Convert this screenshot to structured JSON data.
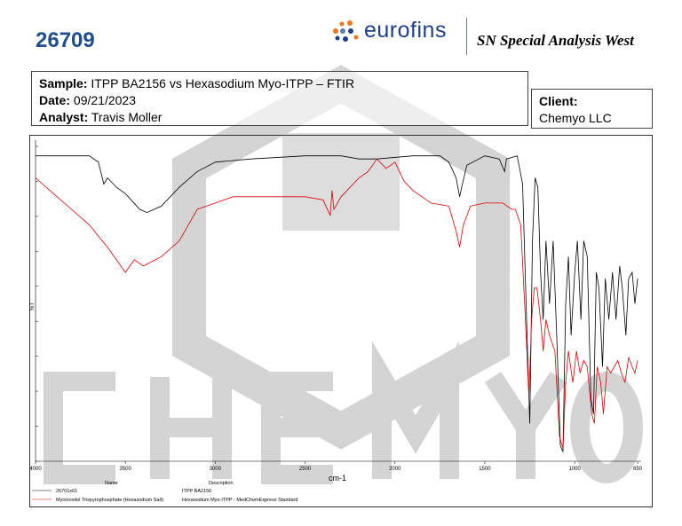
{
  "header": {
    "report_id": "26709",
    "brand": "eurofins",
    "lab_name": "SN Special Analysis West"
  },
  "sample_info": {
    "sample_label": "Sample:",
    "sample_value": "ITPP BA2156 vs Hexasodium Myo-ITPP – FTIR",
    "date_label": "Date:",
    "date_value": "09/21/2023",
    "analyst_label": "Analyst:",
    "analyst_value": "Travis Moller"
  },
  "client": {
    "label": "Client:",
    "value": "Chemyo LLC"
  },
  "watermark": "CHEMYO",
  "colors": {
    "brand_blue": "#1f4e8c",
    "series_black": "#000000",
    "series_red": "#e00000",
    "watermark": "#d0d0d0"
  },
  "chart_data": {
    "type": "line",
    "xlabel": "cm-1",
    "ylabel": "%T",
    "xlim": [
      4000,
      650
    ],
    "x_reversed": true,
    "ylim": [
      0,
      100
    ],
    "xticks": [
      4000,
      3500,
      3000,
      2500,
      2000,
      1500,
      1000,
      650
    ],
    "grid": false,
    "legend": {
      "placement": "bottom",
      "headers": [
        "Name",
        "Description"
      ]
    },
    "series": [
      {
        "name": "26701x01",
        "description": "ITPP BA2156",
        "color": "#000000",
        "points": [
          [
            4000,
            97
          ],
          [
            3700,
            97
          ],
          [
            3650,
            95
          ],
          [
            3620,
            88
          ],
          [
            3600,
            90
          ],
          [
            3550,
            87
          ],
          [
            3500,
            85
          ],
          [
            3420,
            80
          ],
          [
            3380,
            79
          ],
          [
            3300,
            81
          ],
          [
            3200,
            87
          ],
          [
            3100,
            92
          ],
          [
            3000,
            95
          ],
          [
            2800,
            96
          ],
          [
            2500,
            97
          ],
          [
            2300,
            97
          ],
          [
            2200,
            96
          ],
          [
            2100,
            96
          ],
          [
            1900,
            97
          ],
          [
            1750,
            97
          ],
          [
            1700,
            95
          ],
          [
            1660,
            90
          ],
          [
            1640,
            84
          ],
          [
            1625,
            88
          ],
          [
            1600,
            94
          ],
          [
            1500,
            97
          ],
          [
            1420,
            96
          ],
          [
            1390,
            92
          ],
          [
            1380,
            96
          ],
          [
            1320,
            97
          ],
          [
            1290,
            88
          ],
          [
            1265,
            40
          ],
          [
            1250,
            12
          ],
          [
            1235,
            70
          ],
          [
            1220,
            90
          ],
          [
            1205,
            87
          ],
          [
            1190,
            60
          ],
          [
            1175,
            45
          ],
          [
            1160,
            70
          ],
          [
            1140,
            50
          ],
          [
            1120,
            70
          ],
          [
            1100,
            40
          ],
          [
            1080,
            5
          ],
          [
            1065,
            3
          ],
          [
            1050,
            50
          ],
          [
            1035,
            65
          ],
          [
            1020,
            40
          ],
          [
            1000,
            60
          ],
          [
            985,
            70
          ],
          [
            965,
            45
          ],
          [
            950,
            70
          ],
          [
            930,
            65
          ],
          [
            910,
            20
          ],
          [
            895,
            15
          ],
          [
            880,
            60
          ],
          [
            865,
            55
          ],
          [
            845,
            30
          ],
          [
            830,
            58
          ],
          [
            810,
            45
          ],
          [
            790,
            60
          ],
          [
            770,
            45
          ],
          [
            750,
            62
          ],
          [
            735,
            55
          ],
          [
            715,
            40
          ],
          [
            700,
            58
          ],
          [
            680,
            60
          ],
          [
            665,
            50
          ],
          [
            650,
            58
          ]
        ]
      },
      {
        "name": "Myoinositol Trispyrophosphate (Hexasodium Salt)",
        "description": "Hexasodium Myo-ITPP - MedChemExpress Standard",
        "color": "#e00000",
        "points": [
          [
            4000,
            90
          ],
          [
            3900,
            85
          ],
          [
            3800,
            80
          ],
          [
            3700,
            75
          ],
          [
            3600,
            68
          ],
          [
            3500,
            60
          ],
          [
            3450,
            64
          ],
          [
            3400,
            62
          ],
          [
            3300,
            65
          ],
          [
            3200,
            70
          ],
          [
            3100,
            80
          ],
          [
            3000,
            82
          ],
          [
            2900,
            84
          ],
          [
            2700,
            84
          ],
          [
            2500,
            84
          ],
          [
            2400,
            83
          ],
          [
            2360,
            78
          ],
          [
            2350,
            86
          ],
          [
            2340,
            80
          ],
          [
            2300,
            84
          ],
          [
            2200,
            90
          ],
          [
            2150,
            92
          ],
          [
            2100,
            96
          ],
          [
            2050,
            93
          ],
          [
            2000,
            95
          ],
          [
            1950,
            89
          ],
          [
            1900,
            86
          ],
          [
            1800,
            82
          ],
          [
            1700,
            81
          ],
          [
            1660,
            73
          ],
          [
            1640,
            68
          ],
          [
            1620,
            75
          ],
          [
            1580,
            81
          ],
          [
            1500,
            82
          ],
          [
            1400,
            82
          ],
          [
            1350,
            80
          ],
          [
            1330,
            80
          ],
          [
            1300,
            75
          ],
          [
            1270,
            40
          ],
          [
            1255,
            20
          ],
          [
            1240,
            45
          ],
          [
            1225,
            55
          ],
          [
            1210,
            55
          ],
          [
            1190,
            45
          ],
          [
            1175,
            35
          ],
          [
            1160,
            45
          ],
          [
            1140,
            40
          ],
          [
            1110,
            35
          ],
          [
            1085,
            8
          ],
          [
            1065,
            4
          ],
          [
            1050,
            25
          ],
          [
            1035,
            35
          ],
          [
            1010,
            25
          ],
          [
            990,
            35
          ],
          [
            970,
            28
          ],
          [
            950,
            32
          ],
          [
            930,
            30
          ],
          [
            905,
            15
          ],
          [
            890,
            12
          ],
          [
            875,
            30
          ],
          [
            855,
            25
          ],
          [
            840,
            15
          ],
          [
            820,
            30
          ],
          [
            800,
            28
          ],
          [
            780,
            30
          ],
          [
            760,
            32
          ],
          [
            740,
            28
          ],
          [
            720,
            25
          ],
          [
            700,
            33
          ],
          [
            680,
            30
          ],
          [
            665,
            28
          ],
          [
            650,
            32
          ]
        ]
      }
    ]
  }
}
